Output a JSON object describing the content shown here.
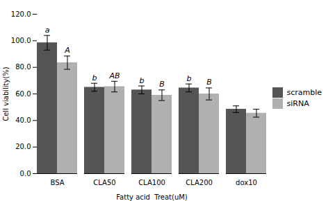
{
  "chart_data": {
    "type": "bar",
    "categories": [
      "BSA",
      "CLA50",
      "CLA100",
      "CLA200",
      "dox10"
    ],
    "series": [
      {
        "name": "scramble",
        "color": "#555555",
        "values": [
          98.5,
          65.0,
          63.0,
          64.5,
          48.5
        ],
        "errors": [
          5.5,
          3.0,
          3.0,
          3.0,
          2.5
        ],
        "annotations": [
          "a",
          "b",
          "b",
          "b",
          null
        ]
      },
      {
        "name": "siRNA",
        "color": "#b0b0b0",
        "values": [
          83.5,
          65.5,
          59.0,
          60.0,
          45.5
        ],
        "errors": [
          5.0,
          4.0,
          4.0,
          4.5,
          3.0
        ],
        "annotations": [
          "A",
          "AB",
          "B",
          "B",
          null
        ]
      }
    ],
    "xlabel": "Fatty acid  Treat(uM)",
    "ylabel": "Cell viability(%)",
    "ylim": [
      0,
      120
    ],
    "yticks": [
      {
        "value": 0,
        "label": "0.0"
      },
      {
        "value": 20,
        "label": "20.0"
      },
      {
        "value": 40,
        "label": "40.0"
      },
      {
        "value": 60,
        "label": "60.0"
      },
      {
        "value": 80,
        "label": "80.0"
      },
      {
        "value": 100,
        "label": "100.0"
      },
      {
        "value": 120,
        "label": "120.0"
      }
    ],
    "legend": "right"
  }
}
